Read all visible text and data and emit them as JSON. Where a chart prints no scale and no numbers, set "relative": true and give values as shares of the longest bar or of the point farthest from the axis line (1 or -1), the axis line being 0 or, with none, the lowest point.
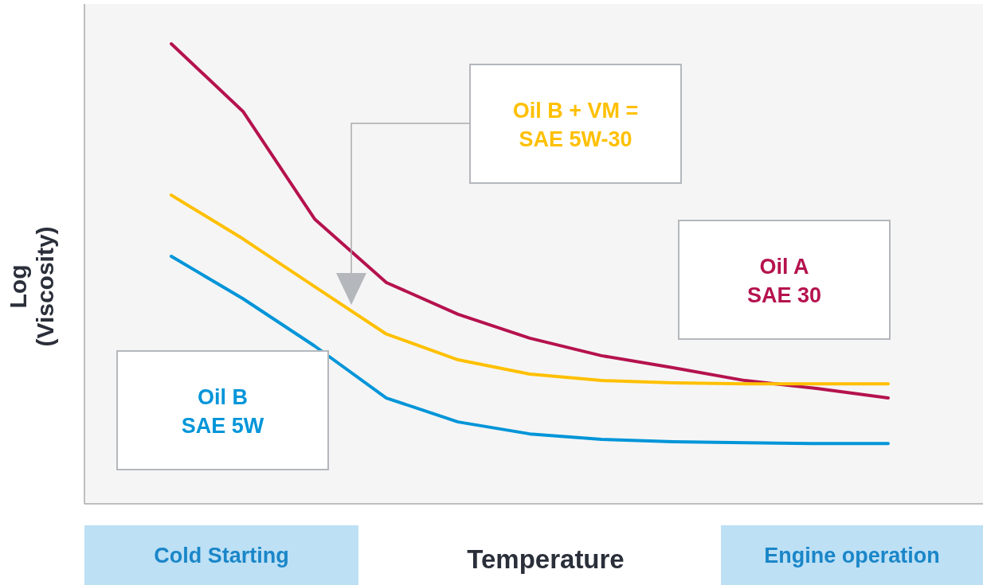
{
  "chart_data": {
    "type": "line",
    "relative": true,
    "xlabel": "Temperature",
    "ylabel": "Log\n(Viscosity)",
    "line_style": "solid",
    "categories": [
      null,
      null,
      null,
      null,
      null,
      null,
      null,
      null,
      null,
      null,
      null
    ],
    "series": [
      {
        "name": "Oil A\nSAE 30",
        "color": "#b5124e",
        "values": [
          1,
          0.853,
          0.619,
          0.481,
          0.412,
          0.36,
          0.322,
          0.296,
          0.268,
          0.251,
          0.23
        ]
      },
      {
        "name": "Oil B + VM =\nSAE 5W-30",
        "color": "#ffc000",
        "values": [
          0.671,
          0.576,
          0.472,
          0.369,
          0.313,
          0.282,
          0.268,
          0.263,
          0.261,
          0.261,
          0.261
        ]
      },
      {
        "name": "Oil B\nSAE 5W",
        "color": "#0095d9",
        "values": [
          0.538,
          0.446,
          0.343,
          0.23,
          0.178,
          0.152,
          0.14,
          0.135,
          0.133,
          0.131,
          0.131
        ]
      }
    ],
    "annotations": [
      "Cold Starting",
      "Engine operation"
    ]
  }
}
